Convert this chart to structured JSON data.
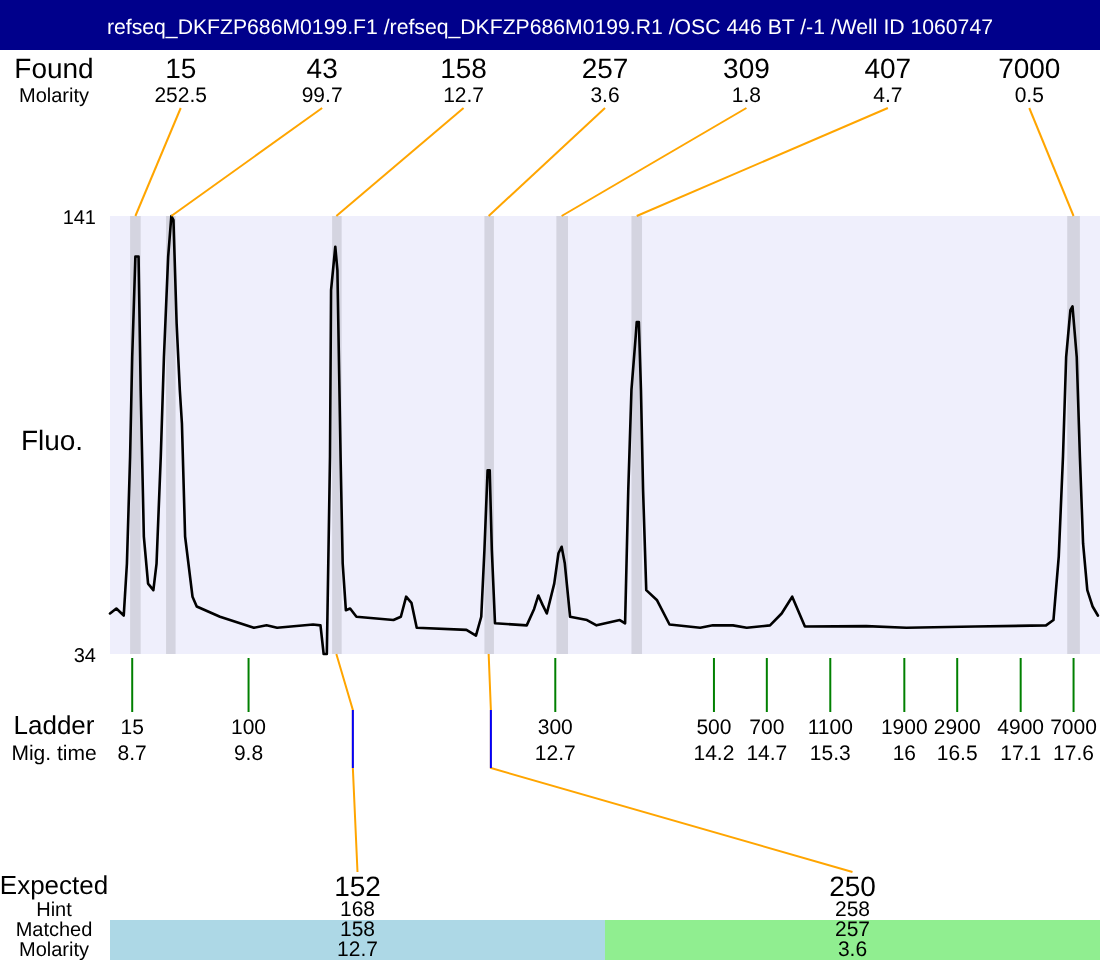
{
  "chart_data": {
    "type": "line",
    "title": "refseq_DKFZP686M0199.F1 /refseq_DKFZP686M0199.R1 /OSC 446 BT /-1 /Well ID 1060747",
    "xlabel": "Mig. time",
    "ylabel": "Fluo.",
    "x": [
      8.49,
      8.55,
      8.62,
      8.65,
      8.68,
      8.7,
      8.73,
      8.76,
      8.78,
      8.81,
      8.85,
      8.9,
      8.93,
      8.97,
      9.0,
      9.04,
      9.07,
      9.09,
      9.12,
      9.15,
      9.17,
      9.2,
      9.27,
      9.31,
      9.53,
      9.85,
      9.97,
      10.07,
      10.41,
      10.48,
      10.51,
      10.54,
      10.57,
      10.58,
      10.62,
      10.64,
      10.67,
      10.69,
      10.72,
      10.76,
      10.82,
      11.17,
      11.24,
      11.29,
      11.34,
      11.39,
      11.86,
      11.95,
      12.0,
      12.03,
      12.06,
      12.08,
      12.1,
      12.13,
      12.43,
      12.5,
      12.54,
      12.58,
      12.62,
      12.69,
      12.73,
      12.76,
      12.79,
      12.84,
      13.0,
      13.09,
      13.31,
      13.36,
      13.39,
      13.42,
      13.46,
      13.47,
      13.49,
      13.51,
      13.53,
      13.56,
      13.66,
      13.78,
      14.07,
      14.19,
      14.38,
      14.51,
      14.73,
      14.84,
      14.94,
      15.06,
      15.64,
      16.02,
      16.67,
      17.34,
      17.41,
      17.46,
      17.5,
      17.53,
      17.57,
      17.59,
      17.63,
      17.66,
      17.69,
      17.73,
      17.78,
      17.83
    ],
    "series": [
      {
        "color": "#000000",
        "values": [
          43.9,
          45.1,
          43.4,
          56.1,
          82.2,
          106.6,
          131.1,
          131.1,
          98.5,
          62.7,
          51.2,
          49.6,
          56.1,
          82.2,
          106.6,
          131.1,
          141,
          140.0,
          114.7,
          98.5,
          90.3,
          62.7,
          48.0,
          45.6,
          43.1,
          40.4,
          41.0,
          40.4,
          41.2,
          41.0,
          34,
          34,
          82.2,
          122.9,
          133.5,
          127.8,
          82.2,
          56.1,
          44.7,
          45.1,
          43.1,
          42.3,
          43.1,
          48,
          46.5,
          40.4,
          39.9,
          38.5,
          43.1,
          59.4,
          78.9,
          78.9,
          59.4,
          41.5,
          41.0,
          45,
          48.3,
          46,
          43.9,
          51.2,
          58.6,
          60.2,
          56.1,
          43.1,
          42.3,
          41.0,
          42.3,
          41.5,
          74.1,
          98.5,
          111.5,
          115.1,
          115.1,
          98.5,
          74.1,
          49.6,
          47.2,
          41.2,
          40.4,
          41.0,
          41.0,
          40.4,
          41.0,
          43.9,
          48,
          40.7,
          40.8,
          40.4,
          40.7,
          41.0,
          42.3,
          57.8,
          82.2,
          106.6,
          118.0,
          118.9,
          106.6,
          82.2,
          61.0,
          49.6,
          45.6,
          43.4
        ]
      }
    ],
    "xlim": [
      8.49,
      17.85
    ],
    "ylim": [
      34,
      141
    ],
    "xticks": [
      8.7,
      9.8,
      12.7,
      14.2,
      14.7,
      15.3,
      16,
      16.5,
      17.1,
      17.6
    ],
    "yticks": [
      34,
      141
    ],
    "bands": [
      {
        "axis": "x",
        "from": 8.68,
        "to": 8.78,
        "color": "#d4d4e0"
      },
      {
        "axis": "x",
        "from": 9.02,
        "to": 9.11,
        "color": "#d4d4e0"
      },
      {
        "axis": "x",
        "from": 10.59,
        "to": 10.68,
        "color": "#d4d4e0"
      },
      {
        "axis": "x",
        "from": 12.03,
        "to": 12.12,
        "color": "#d4d4e0"
      },
      {
        "axis": "x",
        "from": 12.71,
        "to": 12.82,
        "color": "#d4d4e0"
      },
      {
        "axis": "x",
        "from": 13.42,
        "to": 13.52,
        "color": "#d4d4e0"
      },
      {
        "axis": "x",
        "from": 17.54,
        "to": 17.66,
        "color": "#d4d4e0"
      }
    ],
    "annotations": [
      "Found",
      "Molarity",
      "Ladder",
      "Expected",
      "Hint",
      "Matched",
      "Molarity",
      "252.5",
      "99.7",
      "12.7",
      "3.6",
      "1.8",
      "4.7",
      "0.5",
      "15",
      "100",
      "300",
      "500",
      "700",
      "1100",
      "1900",
      "2900",
      "4900",
      "7000",
      "168",
      "158",
      "12.7",
      "258",
      "257",
      "3.6",
      {
        "text": "15",
        "x": 8.73,
        "y": 141
      },
      {
        "text": "43",
        "x": 9.07,
        "y": 141
      },
      {
        "text": "158",
        "x": 10.63,
        "y": 141
      },
      {
        "text": "257",
        "x": 12.07,
        "y": 141
      },
      {
        "text": "309",
        "x": 12.76,
        "y": 141
      },
      {
        "text": "407",
        "x": 13.47,
        "y": 141
      },
      {
        "text": "7000",
        "x": 17.6,
        "y": 141
      },
      {
        "text": "152",
        "x": 10.63,
        "y": 34
      },
      {
        "text": "250",
        "x": 12.07,
        "y": 34
      }
    ]
  }
}
